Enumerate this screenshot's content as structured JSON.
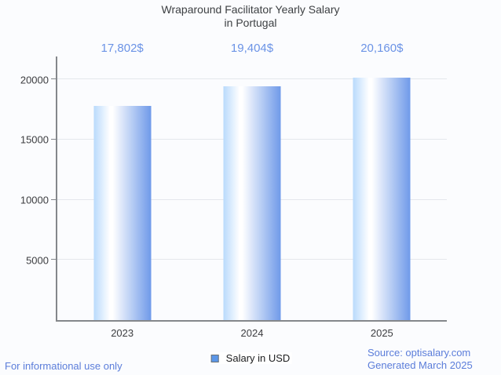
{
  "chart_data": {
    "type": "bar",
    "title": "Wraparound Facilitator Yearly Salary in Portugal",
    "title_lines": [
      "Wraparound Facilitator Yearly Salary",
      "in Portugal"
    ],
    "categories": [
      "2023",
      "2024",
      "2025"
    ],
    "series": [
      {
        "name": "Salary in USD",
        "values": [
          17802,
          19404,
          20160
        ]
      }
    ],
    "value_labels": [
      "17,802$",
      "19,404$",
      "20,160$"
    ],
    "xlabel": "",
    "ylabel": "",
    "yticks": [
      5000,
      10000,
      15000,
      20000
    ],
    "ylim": [
      0,
      21900
    ],
    "grid": true,
    "legend_position": "bottom"
  },
  "legend": {
    "label": "Salary in USD"
  },
  "footer": {
    "left": "For informational use only",
    "source": "Source: optisalary.com",
    "generated": "Generated March 2025"
  },
  "colors": {
    "background": "#fbfcfe",
    "title_text": "#3d4043",
    "value_label_text": "#6b93e6",
    "footer_text": "#5b7dda",
    "axis_line": "#84878b",
    "gridline": "#e4e7ec",
    "tick_text": "#3c3d40",
    "bar_gradient_left": "#b9dafc",
    "bar_gradient_mid": "#ffffff",
    "bar_gradient_right": "#6f9ae9",
    "legend_swatch_fill": "#5b96e8",
    "legend_swatch_border": "#6d7174"
  }
}
